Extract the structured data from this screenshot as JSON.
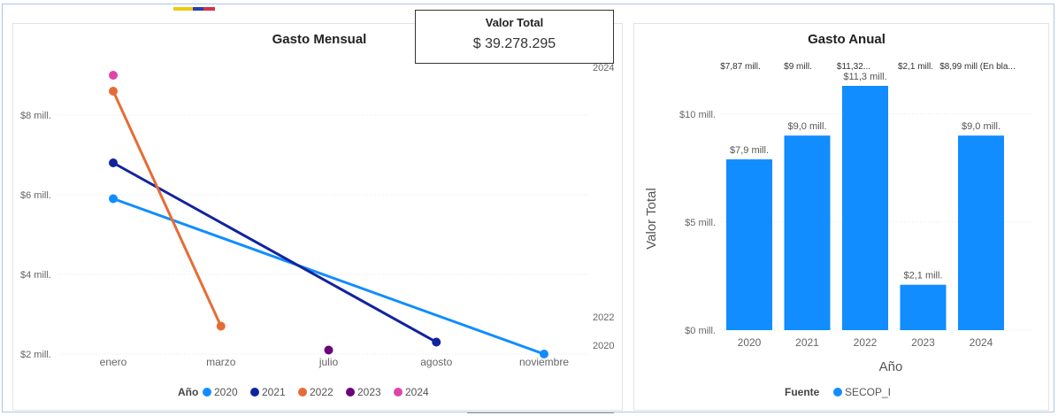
{
  "colors": {
    "y2020": "#118DFF",
    "y2021": "#12239E",
    "y2022": "#E66C37",
    "y2023": "#6B007B",
    "y2024": "#E044A7",
    "bar": "#118DFF",
    "grid": "#e8e8e8",
    "axis_text": "#666666"
  },
  "card": {
    "title": "Valor Total",
    "value": "$ 39.278.295"
  },
  "side_labels": {
    "top": "2024",
    "mid": "2022",
    "bottom": "2020"
  },
  "chart_data": [
    {
      "type": "line",
      "title": "Gasto Mensual",
      "categories": [
        "enero",
        "marzo",
        "julio",
        "agosto",
        "noviembre"
      ],
      "y_ticks": [
        {
          "value": 8,
          "label": "$8 mill."
        },
        {
          "value": 6,
          "label": "$6 mill."
        },
        {
          "value": 4,
          "label": "$4 mill."
        },
        {
          "value": 2,
          "label": "$2 mill."
        }
      ],
      "ylim": [
        1.8,
        9.8
      ],
      "legend": {
        "title": "Año",
        "position": "bottom"
      },
      "series": [
        {
          "name": "2020",
          "color_key": "y2020",
          "values": [
            5.9,
            null,
            null,
            null,
            2.0
          ]
        },
        {
          "name": "2021",
          "color_key": "y2021",
          "values": [
            6.8,
            null,
            null,
            2.3,
            null
          ]
        },
        {
          "name": "2022",
          "color_key": "y2022",
          "values": [
            8.6,
            2.7,
            null,
            null,
            null
          ]
        },
        {
          "name": "2023",
          "color_key": "y2023",
          "values": [
            null,
            null,
            2.1,
            null,
            null
          ]
        },
        {
          "name": "2024",
          "color_key": "y2024",
          "values": [
            9.0,
            null,
            null,
            null,
            null
          ]
        }
      ]
    },
    {
      "type": "bar",
      "title": "Gasto Anual",
      "xlabel": "Año",
      "ylabel": "Valor Total",
      "categories": [
        "2020",
        "2021",
        "2022",
        "2023",
        "2024"
      ],
      "values": [
        7.9,
        9.0,
        11.3,
        2.1,
        9.0
      ],
      "data_labels": [
        "$7,9 mill.",
        "$9,0 mill.",
        "$11,3 mill.",
        "$2,1 mill.",
        "$9,0 mill."
      ],
      "top_labels": [
        "$7,87 mill.",
        "$9 mill.",
        "$11,32...",
        "$2,1 mill.",
        "$8,99 mill (En bla..."
      ],
      "y_ticks": [
        {
          "value": 10,
          "label": "$10 mill."
        },
        {
          "value": 5,
          "label": "$5 mill."
        },
        {
          "value": 0,
          "label": "$0 mill."
        }
      ],
      "ylim": [
        0,
        11.3
      ],
      "legend": {
        "title": "Fuente",
        "position": "bottom",
        "entries": [
          "SECOP_I"
        ]
      }
    }
  ]
}
